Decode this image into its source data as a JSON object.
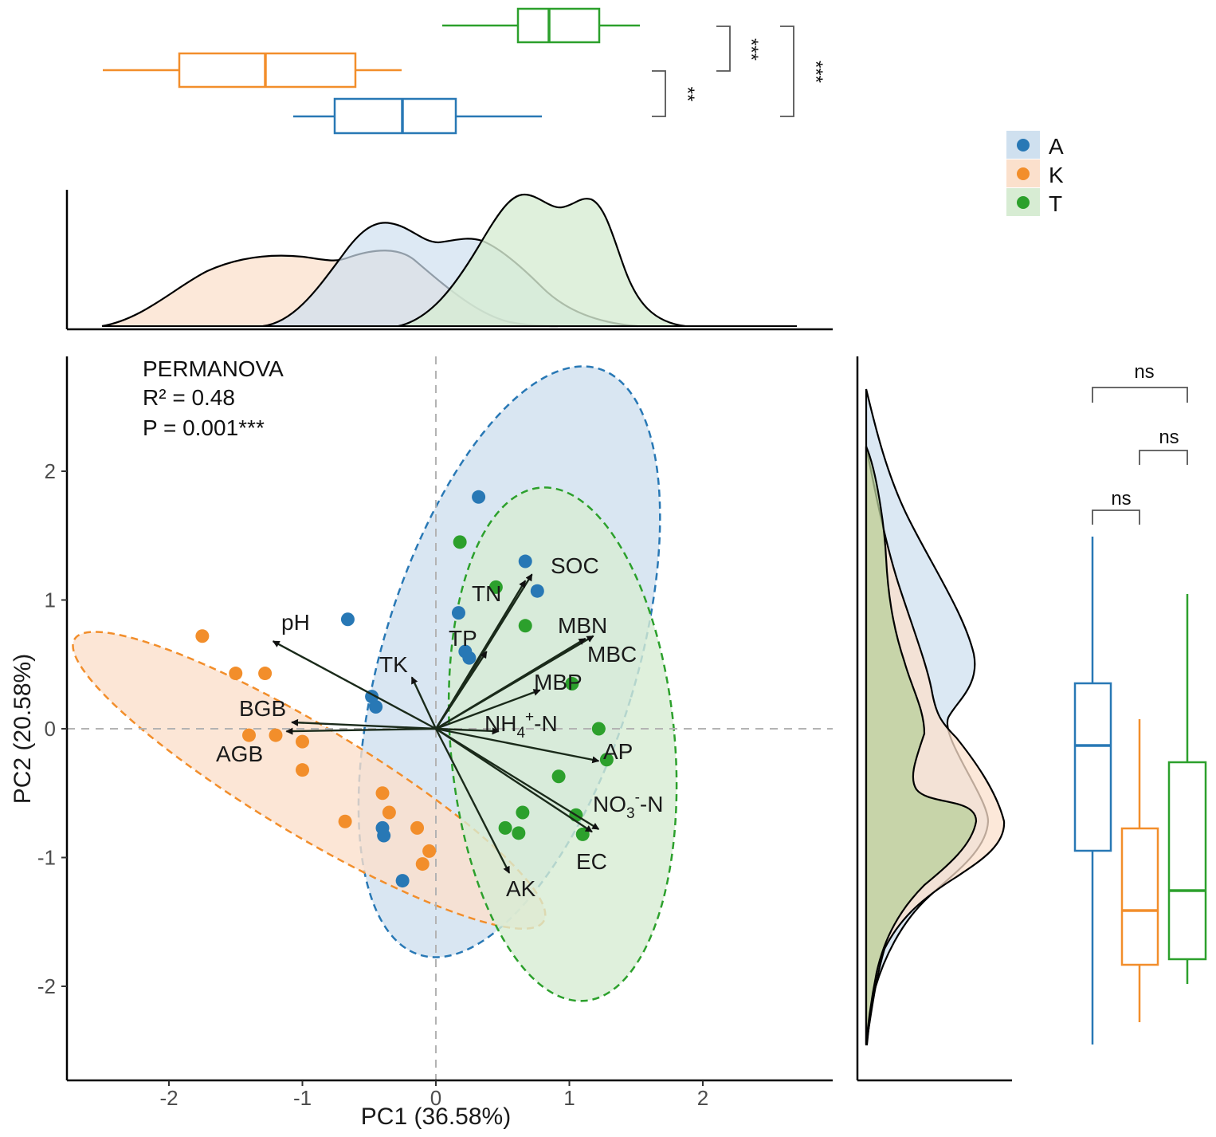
{
  "chart_data": {
    "type": "scatter",
    "subtype": "PCA biplot with marginal density and box plots",
    "xlabel": "PC1 (36.58%)",
    "ylabel": "PC2 (20.58%)",
    "xlim": [
      -2.8,
      3.0
    ],
    "ylim": [
      -2.7,
      2.9
    ],
    "x_ticks": [
      -2,
      -1,
      0,
      1,
      2
    ],
    "y_ticks": [
      -2,
      -1,
      0,
      1,
      2
    ],
    "reference_lines": {
      "x": 0,
      "y": 0,
      "style": "dashed"
    },
    "annotation": [
      "PERMANOVA",
      "R² = 0.48",
      "P = 0.001***"
    ],
    "legend": {
      "position": "top-right",
      "entries": [
        "A",
        "K",
        "T"
      ]
    },
    "colors": {
      "A": "#2878b5",
      "K": "#f28e2b",
      "T": "#2ca02c"
    },
    "fills": {
      "A": "#cfe0ef",
      "K": "#fbe0cc",
      "T": "#d7ecd3"
    },
    "series": [
      {
        "name": "A",
        "points": [
          [
            0.32,
            1.8
          ],
          [
            0.67,
            1.3
          ],
          [
            0.76,
            1.07
          ],
          [
            0.17,
            0.9
          ],
          [
            -0.66,
            0.85
          ],
          [
            0.22,
            0.6
          ],
          [
            0.25,
            0.55
          ],
          [
            -0.48,
            0.25
          ],
          [
            -0.45,
            0.17
          ],
          [
            -0.4,
            -0.77
          ],
          [
            -0.39,
            -0.83
          ],
          [
            -0.25,
            -1.18
          ]
        ],
        "ellipse": {
          "center": [
            0.55,
            0.52
          ],
          "semi_axes": [
            0.95,
            2.38
          ],
          "rotation_deg": 17
        }
      },
      {
        "name": "K",
        "points": [
          [
            -1.75,
            0.72
          ],
          [
            -1.5,
            0.43
          ],
          [
            -1.28,
            0.43
          ],
          [
            -1.4,
            -0.05
          ],
          [
            -1.2,
            -0.05
          ],
          [
            -1.0,
            -0.1
          ],
          [
            -1.0,
            -0.32
          ],
          [
            -0.4,
            -0.5
          ],
          [
            -0.35,
            -0.65
          ],
          [
            -0.68,
            -0.72
          ],
          [
            -0.14,
            -0.77
          ],
          [
            -0.05,
            -0.95
          ],
          [
            -0.1,
            -1.05
          ]
        ],
        "ellipse": {
          "center": [
            -0.95,
            -0.4
          ],
          "semi_axes": [
            2.05,
            0.42
          ],
          "rotation_deg": 31
        }
      },
      {
        "name": "T",
        "points": [
          [
            0.18,
            1.45
          ],
          [
            0.45,
            1.1
          ],
          [
            0.67,
            0.8
          ],
          [
            1.02,
            0.35
          ],
          [
            1.22,
            0.0
          ],
          [
            1.28,
            -0.24
          ],
          [
            0.92,
            -0.37
          ],
          [
            1.05,
            -0.67
          ],
          [
            0.65,
            -0.65
          ],
          [
            0.52,
            -0.77
          ],
          [
            0.62,
            -0.81
          ],
          [
            1.1,
            -0.82
          ]
        ],
        "ellipse": {
          "center": [
            0.95,
            -0.12
          ],
          "semi_axes": [
            0.84,
            2.0
          ],
          "rotation_deg": -5
        }
      }
    ],
    "loadings": [
      {
        "label": "SOC",
        "x": 0.72,
        "y": 1.2
      },
      {
        "label": "TN",
        "x": 0.67,
        "y": 1.15
      },
      {
        "label": "MBN",
        "x": 1.18,
        "y": 0.72
      },
      {
        "label": "MBC",
        "x": 1.12,
        "y": 0.7
      },
      {
        "label": "MBP",
        "x": 0.78,
        "y": 0.3
      },
      {
        "label": "TP",
        "x": 0.38,
        "y": 0.6
      },
      {
        "label": "TK",
        "x": -0.18,
        "y": 0.4
      },
      {
        "label": "pH",
        "x": -1.22,
        "y": 0.68
      },
      {
        "label": "BGB",
        "x": -1.08,
        "y": 0.05
      },
      {
        "label": "AGB",
        "x": -1.12,
        "y": -0.02
      },
      {
        "label": "NH4+-N",
        "x": 0.47,
        "y": -0.02
      },
      {
        "label": "AP",
        "x": 1.22,
        "y": -0.25
      },
      {
        "label": "NO3--N",
        "x": 1.22,
        "y": -0.78
      },
      {
        "label": "EC",
        "x": 1.17,
        "y": -0.8
      },
      {
        "label": "AK",
        "x": 0.55,
        "y": -1.12
      }
    ],
    "marginal_boxplots": {
      "pc1": {
        "A": {
          "whisker_low": -1.05,
          "q1": -0.78,
          "median": -0.25,
          "q3": 0.15,
          "whisker_high": 0.8
        },
        "K": {
          "whisker_low": -2.5,
          "q1": -1.95,
          "median": -1.28,
          "q3": -0.6,
          "whisker_high": -0.25
        },
        "T": {
          "whisker_low": 0.05,
          "q1": 0.6,
          "median": 0.84,
          "q3": 1.22,
          "whisker_high": 1.5
        }
      },
      "pc2": {
        "A": {
          "whisker_low": -2.45,
          "q1": -0.95,
          "median": -0.12,
          "q3": 0.36,
          "whisker_high": 1.53
        },
        "K": {
          "whisker_low": -2.3,
          "q1": -1.86,
          "median": -1.42,
          "q3": -0.78,
          "whisker_high": 0.08
        },
        "T": {
          "whisker_low": -2.02,
          "q1": -1.8,
          "median": -1.28,
          "q3": -0.27,
          "whisker_high": 1.1
        }
      }
    },
    "significance": {
      "pc1": [
        {
          "pair": [
            "A",
            "K"
          ],
          "label": "**"
        },
        {
          "pair": [
            "K",
            "T"
          ],
          "label": "***"
        },
        {
          "pair": [
            "A",
            "T"
          ],
          "label": "***"
        }
      ],
      "pc2": [
        {
          "pair": [
            "A",
            "K"
          ],
          "label": "ns"
        },
        {
          "pair": [
            "K",
            "T"
          ],
          "label": "ns"
        },
        {
          "pair": [
            "A",
            "T"
          ],
          "label": "ns"
        }
      ]
    },
    "density_peaks": {
      "pc1": {
        "A": [
          -0.4,
          0.22
        ],
        "K": [
          -1.6,
          -0.4
        ],
        "T": [
          0.65,
          1.2
        ]
      },
      "pc2": {
        "A": [
          0.45
        ],
        "K": [
          -0.75
        ],
        "T": [
          1.9,
          -0.75
        ]
      }
    }
  }
}
